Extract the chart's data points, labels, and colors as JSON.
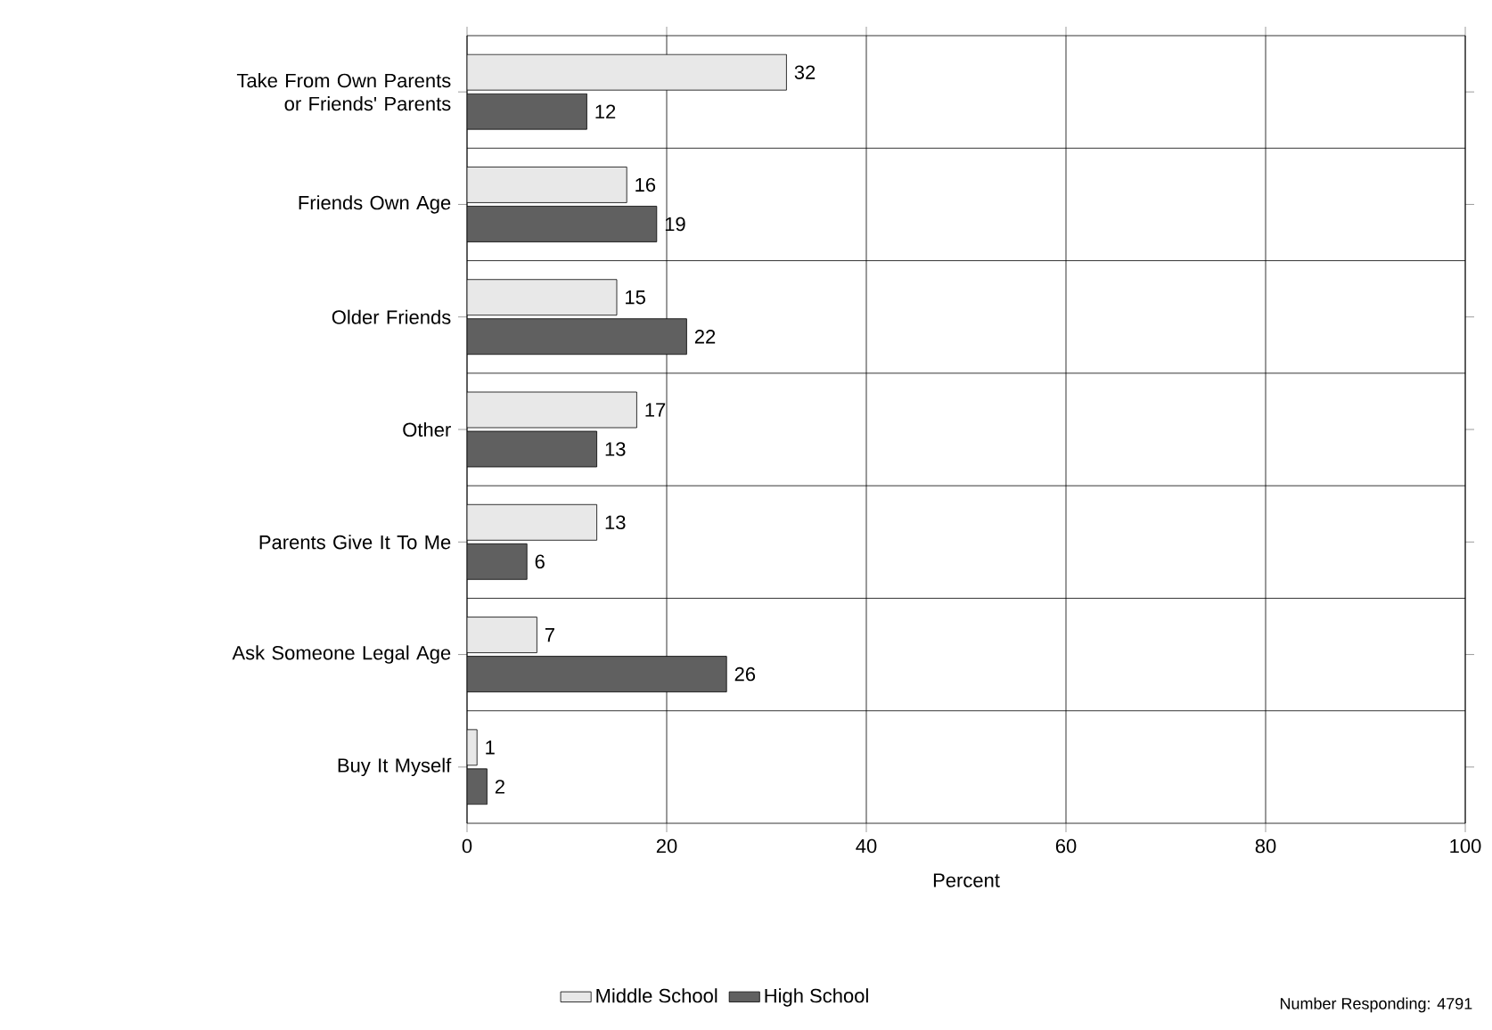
{
  "chart_data": {
    "type": "bar",
    "orientation": "horizontal",
    "xlabel": "Percent",
    "categories": [
      "Take From Own Parents or Friends' Parents",
      "Friends Own Age",
      "Older Friends",
      "Other",
      "Parents Give It To Me",
      "Ask Someone Legal Age",
      "Buy It Myself"
    ],
    "series": [
      {
        "name": "Middle School",
        "color": "#e8e8e8",
        "values": [
          32,
          16,
          15,
          17,
          13,
          7,
          1
        ]
      },
      {
        "name": "High School",
        "color": "#606060",
        "values": [
          12,
          19,
          22,
          13,
          6,
          26,
          2
        ]
      }
    ],
    "xlim": [
      0,
      100
    ],
    "xticks": [
      0,
      20,
      40,
      60,
      80,
      100
    ],
    "grid": true,
    "data_labels": true,
    "legend": "bottom",
    "annotations": [
      "Number Responding: 4791"
    ]
  }
}
